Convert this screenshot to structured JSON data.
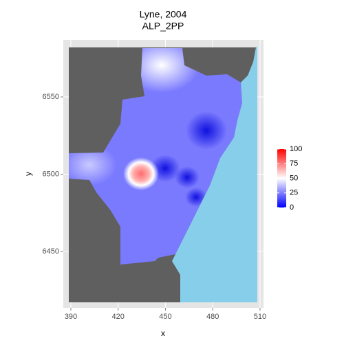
{
  "chart_data": {
    "type": "raster",
    "title": "Lyne, 2004",
    "subtitle": "ALP_2PP",
    "x_label": "x",
    "y_label": "y",
    "xlim": [
      385.2,
      512.2
    ],
    "xticks": [
      390,
      420,
      450,
      480,
      510
    ],
    "ylim": [
      6413.6,
      6586.9
    ],
    "yticks": [
      6450,
      6500,
      6550
    ],
    "grid": true,
    "colorbar": {
      "lim": [
        0,
        100
      ],
      "ticks": [
        0,
        25,
        50,
        75,
        100
      ],
      "colors": [
        "#0000ff",
        "#ffffff",
        "#ff0000"
      ]
    }
  }
}
